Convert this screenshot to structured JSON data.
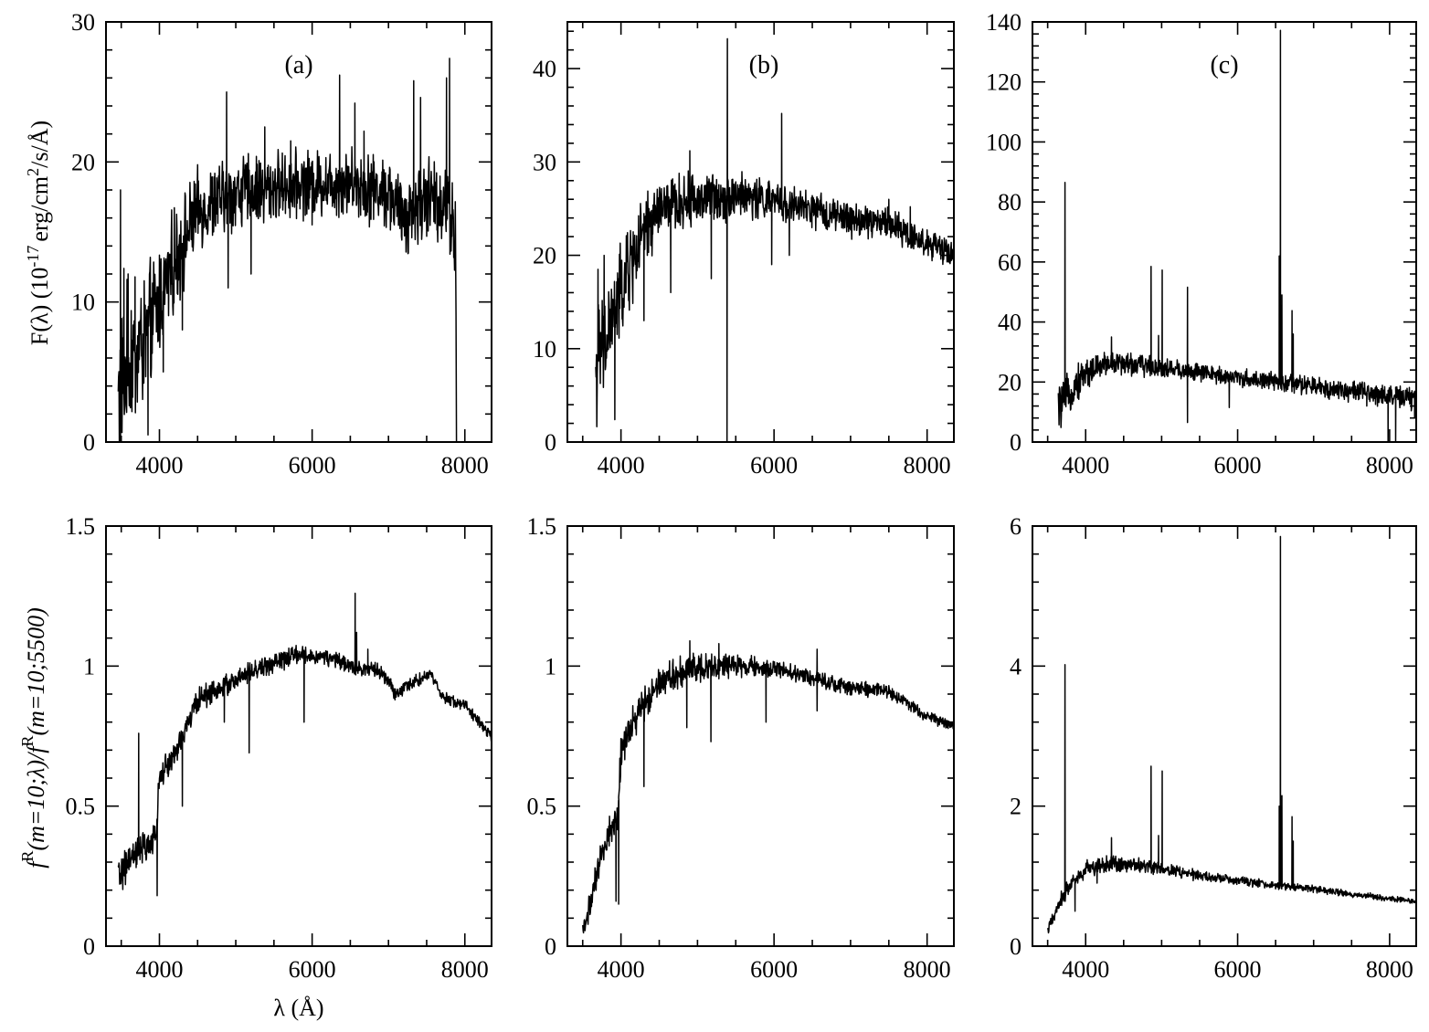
{
  "figure": {
    "ylabel_top_prefix": "F(λ) (10",
    "ylabel_top_exp": "-17",
    "ylabel_top_mid": "erg/cm",
    "ylabel_top_exp2": "2",
    "ylabel_top_suffix": "/s/Å)",
    "ylabel_bottom_f1": "f",
    "ylabel_bottom_sup1": "R",
    "ylabel_bottom_arg1": "(m=10;λ)/",
    "ylabel_bottom_f2": "f",
    "ylabel_bottom_sup2": "R",
    "ylabel_bottom_arg2": "(m=10;5500)",
    "xlabel": "λ (Å)"
  },
  "chart_data": [
    {
      "id": "top-a",
      "type": "line",
      "panel_label": "(a)",
      "xlim": [
        3300,
        8350
      ],
      "ylim": [
        0,
        30
      ],
      "xticks": [
        4000,
        6000,
        8000
      ],
      "yticks": [
        0,
        10,
        20,
        30
      ],
      "x_range": [
        3460,
        7880
      ],
      "continuum": [
        [
          3460,
          3
        ],
        [
          3600,
          6
        ],
        [
          3800,
          7
        ],
        [
          4000,
          10
        ],
        [
          4200,
          13
        ],
        [
          4500,
          16.5
        ],
        [
          5000,
          17.8
        ],
        [
          5500,
          18.2
        ],
        [
          6000,
          18.5
        ],
        [
          6500,
          18.6
        ],
        [
          7000,
          17.8
        ],
        [
          7200,
          16
        ],
        [
          7500,
          17.5
        ],
        [
          7800,
          17
        ],
        [
          7860,
          15
        ]
      ],
      "noise": [
        [
          3460,
          4.5
        ],
        [
          4000,
          3.2
        ],
        [
          4500,
          2.2
        ],
        [
          6000,
          1.8
        ],
        [
          7000,
          2
        ],
        [
          7800,
          2.5
        ]
      ],
      "lines": [
        [
          3490,
          18
        ],
        [
          3535,
          12.4
        ],
        [
          3590,
          12
        ],
        [
          3680,
          11.8
        ],
        [
          4880,
          25
        ],
        [
          5380,
          22.5
        ],
        [
          5720,
          21.5
        ],
        [
          6360,
          26.2
        ],
        [
          6560,
          24.2
        ],
        [
          6680,
          22.2
        ],
        [
          7330,
          25.8
        ],
        [
          7420,
          24.6
        ],
        [
          7760,
          26
        ],
        [
          7800,
          27.4
        ]
      ],
      "absorptions": [
        [
          3850,
          0.5
        ],
        [
          4050,
          5
        ],
        [
          4300,
          8
        ],
        [
          4900,
          11
        ],
        [
          5200,
          12
        ],
        [
          6000,
          15.5
        ]
      ],
      "drop_end": true
    },
    {
      "id": "top-b",
      "type": "line",
      "panel_label": "(b)",
      "xlim": [
        3300,
        8350
      ],
      "ylim": [
        0,
        45
      ],
      "xticks": [
        4000,
        6000,
        8000
      ],
      "yticks": [
        0,
        10,
        20,
        30,
        40
      ],
      "x_range": [
        3670,
        8350
      ],
      "continuum": [
        [
          3670,
          8
        ],
        [
          3800,
          11
        ],
        [
          4000,
          16
        ],
        [
          4200,
          20.5
        ],
        [
          4500,
          25
        ],
        [
          5000,
          26
        ],
        [
          5500,
          26.5
        ],
        [
          6000,
          25.8
        ],
        [
          6500,
          24.8
        ],
        [
          7000,
          23.8
        ],
        [
          7500,
          23.5
        ],
        [
          8000,
          21.2
        ],
        [
          8350,
          20.2
        ]
      ],
      "noise": [
        [
          3670,
          5
        ],
        [
          4000,
          4
        ],
        [
          4500,
          2.5
        ],
        [
          6000,
          1.6
        ],
        [
          8350,
          1.2
        ]
      ],
      "lines": [
        [
          3700,
          18.5
        ],
        [
          3780,
          20
        ],
        [
          4900,
          31.2
        ],
        [
          5390,
          43.2
        ],
        [
          6100,
          35.2
        ],
        [
          7500,
          26
        ],
        [
          7780,
          25.2
        ]
      ],
      "absorptions": [
        [
          3920,
          2.4
        ],
        [
          4300,
          13
        ],
        [
          4650,
          16
        ],
        [
          5180,
          17.5
        ],
        [
          5386,
          0
        ],
        [
          5970,
          19
        ],
        [
          6200,
          20
        ]
      ],
      "drop_end": false
    },
    {
      "id": "top-c",
      "type": "line",
      "panel_label": "(c)",
      "xlim": [
        3300,
        8350
      ],
      "ylim": [
        0,
        140
      ],
      "xticks": [
        4000,
        6000,
        8000
      ],
      "yticks": [
        0,
        20,
        40,
        60,
        80,
        100,
        120,
        140
      ],
      "x_range": [
        3640,
        8350
      ],
      "continuum": [
        [
          3640,
          11
        ],
        [
          3800,
          17
        ],
        [
          4000,
          23
        ],
        [
          4300,
          26.5
        ],
        [
          4800,
          25.5
        ],
        [
          5500,
          23
        ],
        [
          6000,
          21.5
        ],
        [
          6500,
          20
        ],
        [
          7000,
          18.5
        ],
        [
          7500,
          17
        ],
        [
          8000,
          15.5
        ],
        [
          8350,
          14
        ]
      ],
      "noise": [
        [
          3640,
          6
        ],
        [
          4000,
          4
        ],
        [
          4500,
          3
        ],
        [
          6000,
          2.2
        ],
        [
          8350,
          3
        ]
      ],
      "lines": [
        [
          3728,
          86.5
        ],
        [
          4340,
          35
        ],
        [
          4861,
          58.5
        ],
        [
          4959,
          35.5
        ],
        [
          5007,
          57.3
        ],
        [
          5340,
          51.6
        ],
        [
          6548,
          62
        ],
        [
          6563,
          137.2
        ],
        [
          6583,
          49
        ],
        [
          6716,
          43.8
        ],
        [
          6731,
          36
        ]
      ],
      "absorptions": [
        [
          5340,
          6.5
        ],
        [
          5890,
          11.5
        ],
        [
          7700,
          12
        ],
        [
          7980,
          0
        ],
        [
          8080,
          0
        ],
        [
          8330,
          8
        ]
      ],
      "drop_end": false
    },
    {
      "id": "bottom-a",
      "type": "line",
      "panel_label": "",
      "xlim": [
        3300,
        8350
      ],
      "ylim": [
        0,
        1.5
      ],
      "xticks": [
        4000,
        6000,
        8000
      ],
      "yticks": [
        0,
        0.5,
        1,
        1.5
      ],
      "ytick_labels": [
        "0",
        "0.5",
        "1",
        "1.5"
      ],
      "x_range": [
        3460,
        8350
      ],
      "continuum": [
        [
          3460,
          0.25
        ],
        [
          3700,
          0.33
        ],
        [
          3960,
          0.38
        ],
        [
          3990,
          0.6
        ],
        [
          4200,
          0.68
        ],
        [
          4500,
          0.88
        ],
        [
          5000,
          0.95
        ],
        [
          5300,
          0.99
        ],
        [
          5800,
          1.04
        ],
        [
          6200,
          1.03
        ],
        [
          6500,
          1.0
        ],
        [
          6900,
          0.98
        ],
        [
          7100,
          0.9
        ],
        [
          7300,
          0.94
        ],
        [
          7550,
          0.97
        ],
        [
          7700,
          0.89
        ],
        [
          8000,
          0.86
        ],
        [
          8350,
          0.75
        ]
      ],
      "noise": [
        [
          3460,
          0.05
        ],
        [
          4000,
          0.04
        ],
        [
          5000,
          0.03
        ],
        [
          6500,
          0.022
        ],
        [
          8350,
          0.015
        ]
      ],
      "lines": [
        [
          3728,
          0.76
        ],
        [
          3530,
          0.28
        ],
        [
          6563,
          1.26
        ],
        [
          6583,
          1.12
        ],
        [
          6730,
          1.06
        ]
      ],
      "absorptions": [
        [
          3970,
          0.18
        ],
        [
          4300,
          0.5
        ],
        [
          5175,
          0.69
        ],
        [
          5895,
          0.8
        ],
        [
          4850,
          0.8
        ]
      ],
      "drop_end": false
    },
    {
      "id": "bottom-b",
      "type": "line",
      "panel_label": "",
      "xlim": [
        3300,
        8350
      ],
      "ylim": [
        0,
        1.5
      ],
      "xticks": [
        4000,
        6000,
        8000
      ],
      "yticks": [
        0,
        0.5,
        1,
        1.5
      ],
      "ytick_labels": [
        "0",
        "0.5",
        "1",
        "1.5"
      ],
      "x_range": [
        3500,
        8350
      ],
      "continuum": [
        [
          3500,
          0.05
        ],
        [
          3600,
          0.15
        ],
        [
          3800,
          0.38
        ],
        [
          3960,
          0.46
        ],
        [
          4000,
          0.7
        ],
        [
          4200,
          0.82
        ],
        [
          4500,
          0.95
        ],
        [
          5000,
          1.0
        ],
        [
          5500,
          1.0
        ],
        [
          6000,
          0.99
        ],
        [
          6500,
          0.96
        ],
        [
          7000,
          0.92
        ],
        [
          7500,
          0.91
        ],
        [
          8000,
          0.82
        ],
        [
          8350,
          0.79
        ]
      ],
      "noise": [
        [
          3500,
          0.04
        ],
        [
          4000,
          0.05
        ],
        [
          5000,
          0.04
        ],
        [
          6000,
          0.025
        ],
        [
          8350,
          0.015
        ]
      ],
      "lines": [
        [
          4900,
          1.09
        ],
        [
          5280,
          1.08
        ],
        [
          6563,
          1.06
        ]
      ],
      "absorptions": [
        [
          3935,
          0.16
        ],
        [
          3970,
          0.15
        ],
        [
          4300,
          0.57
        ],
        [
          4860,
          0.78
        ],
        [
          5175,
          0.73
        ],
        [
          5895,
          0.8
        ],
        [
          6563,
          0.84
        ]
      ],
      "drop_end": false
    },
    {
      "id": "bottom-c",
      "type": "line",
      "panel_label": "",
      "xlim": [
        3300,
        8350
      ],
      "ylim": [
        0,
        6
      ],
      "xticks": [
        4000,
        6000,
        8000
      ],
      "yticks": [
        0,
        2,
        4,
        6
      ],
      "x_range": [
        3500,
        8350
      ],
      "continuum": [
        [
          3500,
          0.2
        ],
        [
          3600,
          0.5
        ],
        [
          3800,
          0.9
        ],
        [
          4000,
          1.1
        ],
        [
          4300,
          1.18
        ],
        [
          4800,
          1.15
        ],
        [
          5500,
          1.0
        ],
        [
          6000,
          0.93
        ],
        [
          6500,
          0.87
        ],
        [
          7000,
          0.82
        ],
        [
          7500,
          0.74
        ],
        [
          8000,
          0.68
        ],
        [
          8350,
          0.64
        ]
      ],
      "noise": [
        [
          3500,
          0.08
        ],
        [
          4000,
          0.1
        ],
        [
          5000,
          0.07
        ],
        [
          6000,
          0.05
        ],
        [
          8350,
          0.03
        ]
      ],
      "lines": [
        [
          3728,
          4.02
        ],
        [
          4340,
          1.55
        ],
        [
          4861,
          2.57
        ],
        [
          4959,
          1.58
        ],
        [
          5007,
          2.5
        ],
        [
          6548,
          2.0
        ],
        [
          6563,
          5.85
        ],
        [
          6583,
          2.15
        ],
        [
          6716,
          1.85
        ],
        [
          6731,
          1.5
        ]
      ],
      "absorptions": [
        [
          3860,
          0.5
        ],
        [
          4150,
          0.9
        ]
      ],
      "drop_end": false
    }
  ]
}
